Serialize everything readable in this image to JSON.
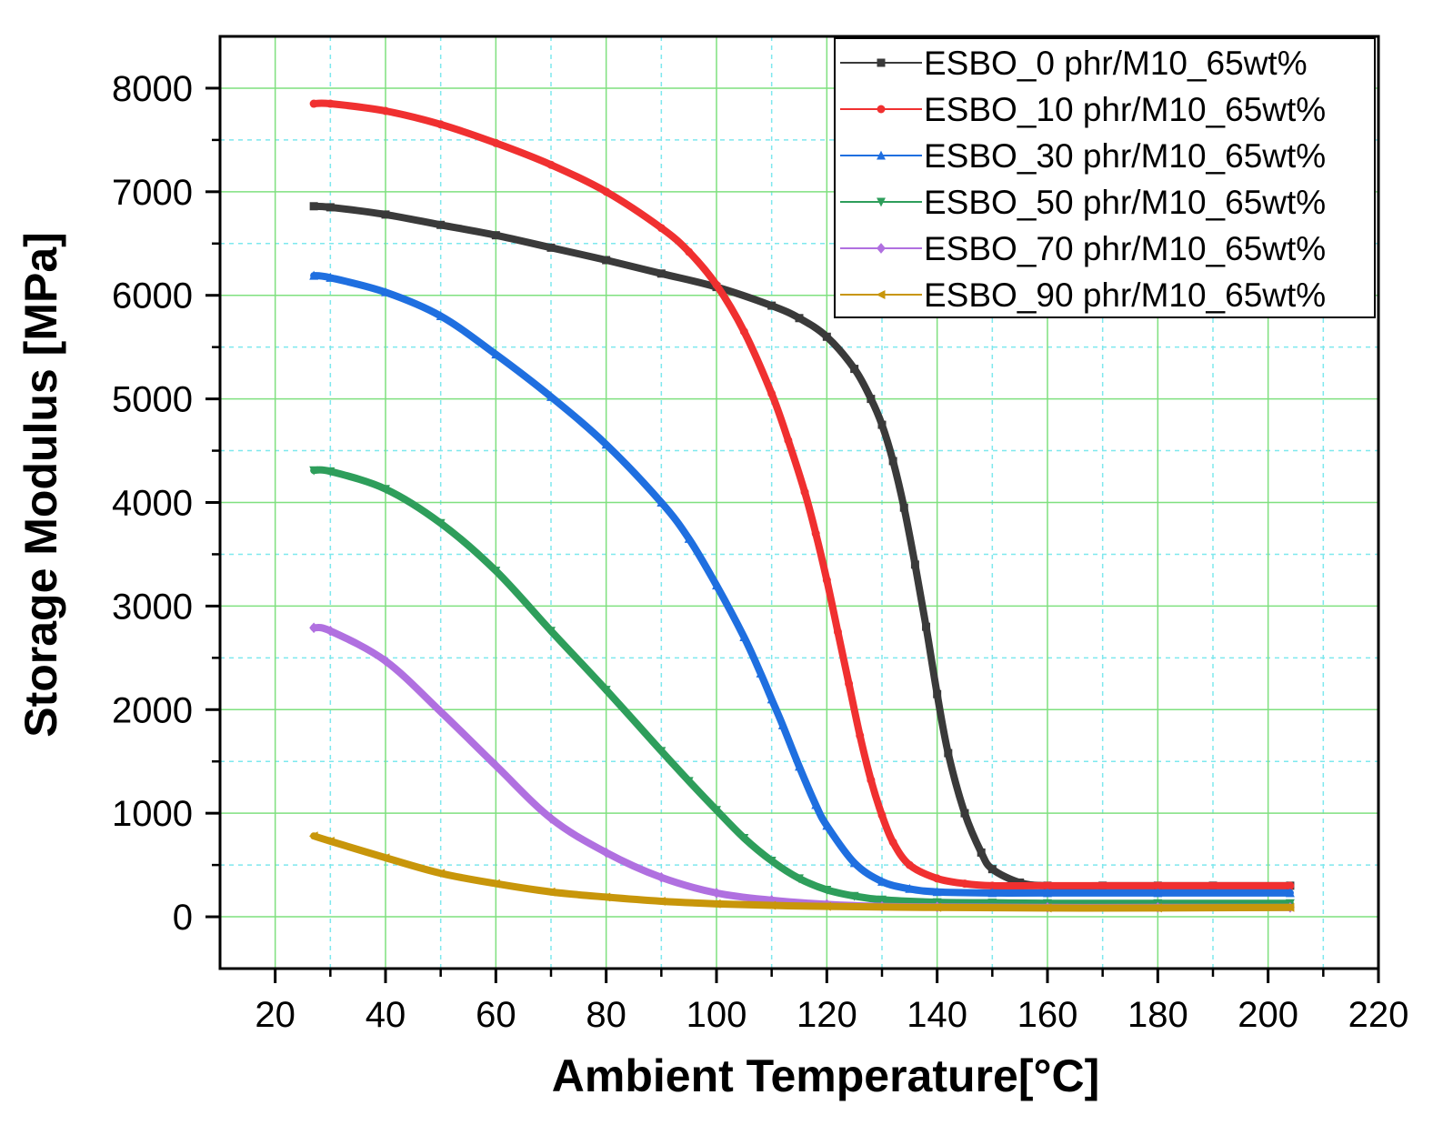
{
  "chart_data": {
    "type": "line",
    "xlabel": "Ambient Temperature[°C]",
    "ylabel": "Storage Modulus [MPa]",
    "xlim": [
      10,
      220
    ],
    "ylim": [
      -500,
      8500
    ],
    "x_ticks": [
      20,
      40,
      60,
      80,
      100,
      120,
      140,
      160,
      180,
      200,
      220
    ],
    "y_ticks": [
      0,
      1000,
      2000,
      3000,
      4000,
      5000,
      6000,
      7000,
      8000
    ],
    "grid": true,
    "legend_position": "top-right",
    "series": [
      {
        "name": "ESBO_0 phr/M10_65wt%",
        "color": "#3a3a3a",
        "marker": "square",
        "x": [
          27,
          30,
          40,
          50,
          60,
          70,
          80,
          90,
          100,
          110,
          115,
          120,
          125,
          128,
          130,
          132,
          134,
          136,
          138,
          140,
          142,
          145,
          148,
          150,
          155,
          160,
          170,
          180,
          190,
          204
        ],
        "y": [
          6860,
          6850,
          6780,
          6680,
          6580,
          6460,
          6340,
          6210,
          6080,
          5900,
          5780,
          5600,
          5290,
          5000,
          4750,
          4400,
          3950,
          3400,
          2800,
          2150,
          1580,
          1000,
          620,
          460,
          330,
          300,
          300,
          300,
          300,
          300
        ]
      },
      {
        "name": "ESBO_10 phr/M10_65wt%",
        "color": "#f03030",
        "marker": "circle",
        "x": [
          27,
          30,
          40,
          50,
          60,
          70,
          80,
          90,
          95,
          100,
          105,
          110,
          113,
          116,
          118,
          120,
          122,
          124,
          126,
          128,
          130,
          132,
          135,
          140,
          145,
          150,
          160,
          180,
          204
        ],
        "y": [
          7850,
          7850,
          7780,
          7650,
          7470,
          7260,
          7000,
          6650,
          6420,
          6100,
          5650,
          5050,
          4600,
          4100,
          3700,
          3250,
          2750,
          2250,
          1750,
          1320,
          980,
          720,
          500,
          370,
          320,
          300,
          300,
          300,
          300
        ]
      },
      {
        "name": "ESBO_30 phr/M10_65wt%",
        "color": "#1f6fe0",
        "marker": "triangle-up",
        "x": [
          27,
          30,
          40,
          50,
          60,
          70,
          80,
          90,
          95,
          100,
          105,
          108,
          110,
          112,
          115,
          118,
          120,
          125,
          130,
          135,
          140,
          150,
          160,
          180,
          204
        ],
        "y": [
          6190,
          6170,
          6030,
          5800,
          5430,
          5020,
          4560,
          4000,
          3650,
          3200,
          2700,
          2350,
          2100,
          1850,
          1450,
          1080,
          880,
          520,
          340,
          270,
          240,
          230,
          230,
          230,
          230
        ]
      },
      {
        "name": "ESBO_50 phr/M10_65wt%",
        "color": "#2e9e5b",
        "marker": "triangle-down",
        "x": [
          27,
          30,
          40,
          50,
          60,
          70,
          80,
          90,
          95,
          100,
          105,
          110,
          115,
          120,
          125,
          130,
          140,
          150,
          160,
          180,
          204
        ],
        "y": [
          4310,
          4300,
          4130,
          3800,
          3340,
          2760,
          2190,
          1600,
          1310,
          1030,
          760,
          540,
          370,
          260,
          200,
          165,
          140,
          135,
          130,
          130,
          130
        ]
      },
      {
        "name": "ESBO_70 phr/M10_65wt%",
        "color": "#b070e0",
        "marker": "diamond",
        "x": [
          27,
          30,
          40,
          50,
          60,
          70,
          80,
          90,
          100,
          110,
          120,
          130,
          140,
          160,
          180,
          204
        ],
        "y": [
          2790,
          2760,
          2470,
          1980,
          1460,
          950,
          620,
          380,
          230,
          160,
          120,
          100,
          95,
          90,
          90,
          90
        ]
      },
      {
        "name": "ESBO_90 phr/M10_65wt%",
        "color": "#c8960a",
        "marker": "triangle-left",
        "x": [
          27,
          30,
          40,
          50,
          60,
          70,
          80,
          90,
          100,
          110,
          120,
          140,
          160,
          180,
          204
        ],
        "y": [
          780,
          730,
          570,
          420,
          320,
          240,
          190,
          150,
          125,
          110,
          100,
          90,
          85,
          85,
          90
        ]
      }
    ]
  }
}
